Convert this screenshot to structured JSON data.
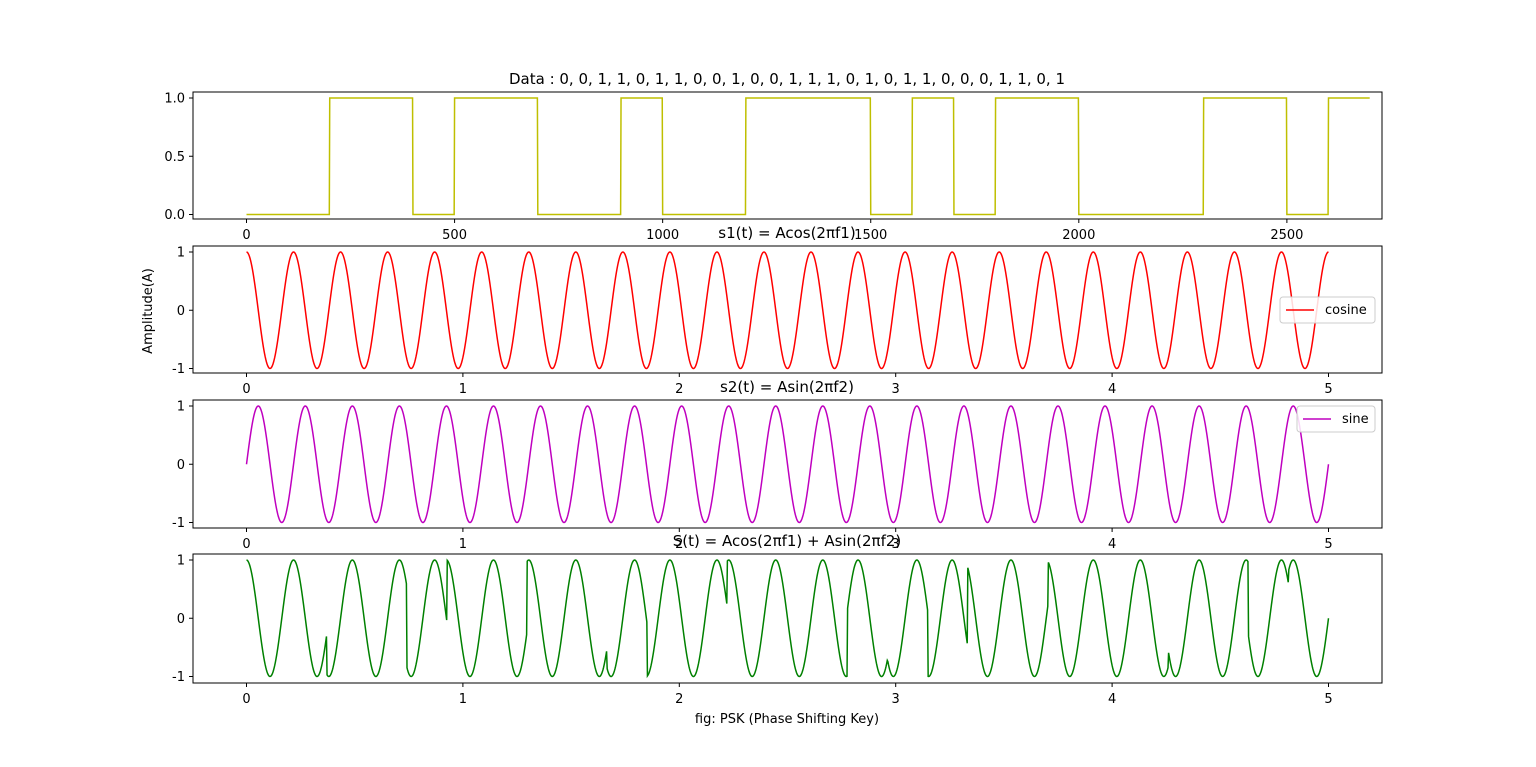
{
  "figure": {
    "xlabel": "fig: PSK (Phase Shifting Key)",
    "ylabel": "Amplitude(A)"
  },
  "chart_data": [
    {
      "type": "line",
      "title": "Data : 0, 0, 1, 1, 0, 1, 1, 0, 0, 1, 0, 0, 1, 1, 1, 0, 1, 0, 1, 1, 0, 0, 0, 1, 1, 0, 1",
      "bits": [
        0,
        0,
        1,
        1,
        0,
        1,
        1,
        0,
        0,
        1,
        0,
        0,
        1,
        1,
        1,
        0,
        1,
        0,
        1,
        1,
        0,
        0,
        0,
        1,
        1,
        0,
        1
      ],
      "samples_per_bit": 100,
      "xlim": [
        0,
        2600
      ],
      "ylim": [
        0,
        1
      ],
      "xticks": [
        0,
        500,
        1000,
        1500,
        2000,
        2500
      ],
      "yticks": [
        0.0,
        0.5,
        1.0
      ],
      "ytick_labels": [
        "0.0",
        "0.5",
        "1.0"
      ],
      "series": [
        {
          "color": "#bfbf00"
        }
      ]
    },
    {
      "type": "line",
      "title": "s1(t) = Acos(2πf1)",
      "function": "cos",
      "frequency": 4.6,
      "xlim": [
        0,
        5
      ],
      "ylim": [
        -1,
        1
      ],
      "xticks": [
        0,
        1,
        2,
        3,
        4,
        5
      ],
      "yticks": [
        -1,
        0,
        1
      ],
      "series": [
        {
          "name": "cosine",
          "color": "#ff0000"
        }
      ],
      "legend": "right"
    },
    {
      "type": "line",
      "title": "s2(t) = Asin(2πf2)",
      "function": "sin",
      "frequency": 4.6,
      "xlim": [
        0,
        5
      ],
      "ylim": [
        -1,
        1
      ],
      "xticks": [
        0,
        1,
        2,
        3,
        4,
        5
      ],
      "yticks": [
        -1,
        0,
        1
      ],
      "series": [
        {
          "name": "sine",
          "color": "#bf00bf"
        }
      ],
      "legend": "upper right"
    },
    {
      "type": "line",
      "title": "S(t) = Acos(2πf1) + Asin(2πf2)",
      "function": "psk",
      "frequency": 4.6,
      "xlim": [
        0,
        5
      ],
      "ylim": [
        -1,
        1
      ],
      "xticks": [
        0,
        1,
        2,
        3,
        4,
        5
      ],
      "yticks": [
        -1,
        0,
        1
      ],
      "series": [
        {
          "color": "#008000"
        }
      ]
    }
  ]
}
